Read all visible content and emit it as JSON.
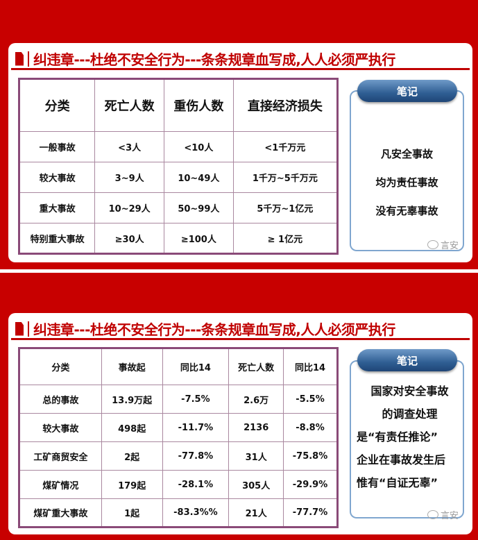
{
  "slide1": {
    "title": "纠违章---杜绝不安全行为---条条规章血写成,人人必须严执行",
    "table": {
      "headers": [
        "分类",
        "死亡人数",
        "重伤人数",
        "直接经济损失"
      ],
      "rows": [
        [
          "一般事故",
          "<3人",
          "<10人",
          "<1千万元"
        ],
        [
          "较大事故",
          "3~9人",
          "10~49人",
          "1千万~5千万元"
        ],
        [
          "重大事故",
          "10~29人",
          "50~99人",
          "5千万~1亿元"
        ],
        [
          "特别重大事故",
          "≥30人",
          "≥100人",
          "≥ 1亿元"
        ]
      ]
    },
    "note": {
      "label": "笔记",
      "lines": [
        "凡安全事故",
        "均为责任事故",
        "没有无辜事故"
      ]
    },
    "watermark": "言安"
  },
  "slide2": {
    "title": "纠违章---杜绝不安全行为---条条规章血写成,人人必须严执行",
    "table": {
      "headers": [
        "分类",
        "事故起",
        "同比14",
        "死亡人数",
        "同比14"
      ],
      "rows": [
        [
          "总的事故",
          "13.9万起",
          "-7.5%",
          "2.6万",
          "-5.5%"
        ],
        [
          "较大事故",
          "498起",
          "-11.7%",
          "2136",
          "-8.8%"
        ],
        [
          "工矿商贸安全",
          "2起",
          "-77.8%",
          "31人",
          "-75.8%"
        ],
        [
          "煤矿情况",
          "179起",
          "-28.1%",
          "305人",
          "-29.9%"
        ],
        [
          "煤矿重大事故",
          "1起",
          "-83.3%%",
          "21人",
          "-77.7%"
        ]
      ]
    },
    "note": {
      "label": "笔记",
      "lines": [
        "国家对安全事故",
        "的调查处理",
        "是“有责任推论”",
        "企业在事故发生后",
        "惟有“自证无辜”"
      ]
    },
    "watermark": "言安"
  },
  "colors": {
    "red": "#c80000",
    "table_border": "#8a4a78",
    "pill": "#2f5e93"
  }
}
